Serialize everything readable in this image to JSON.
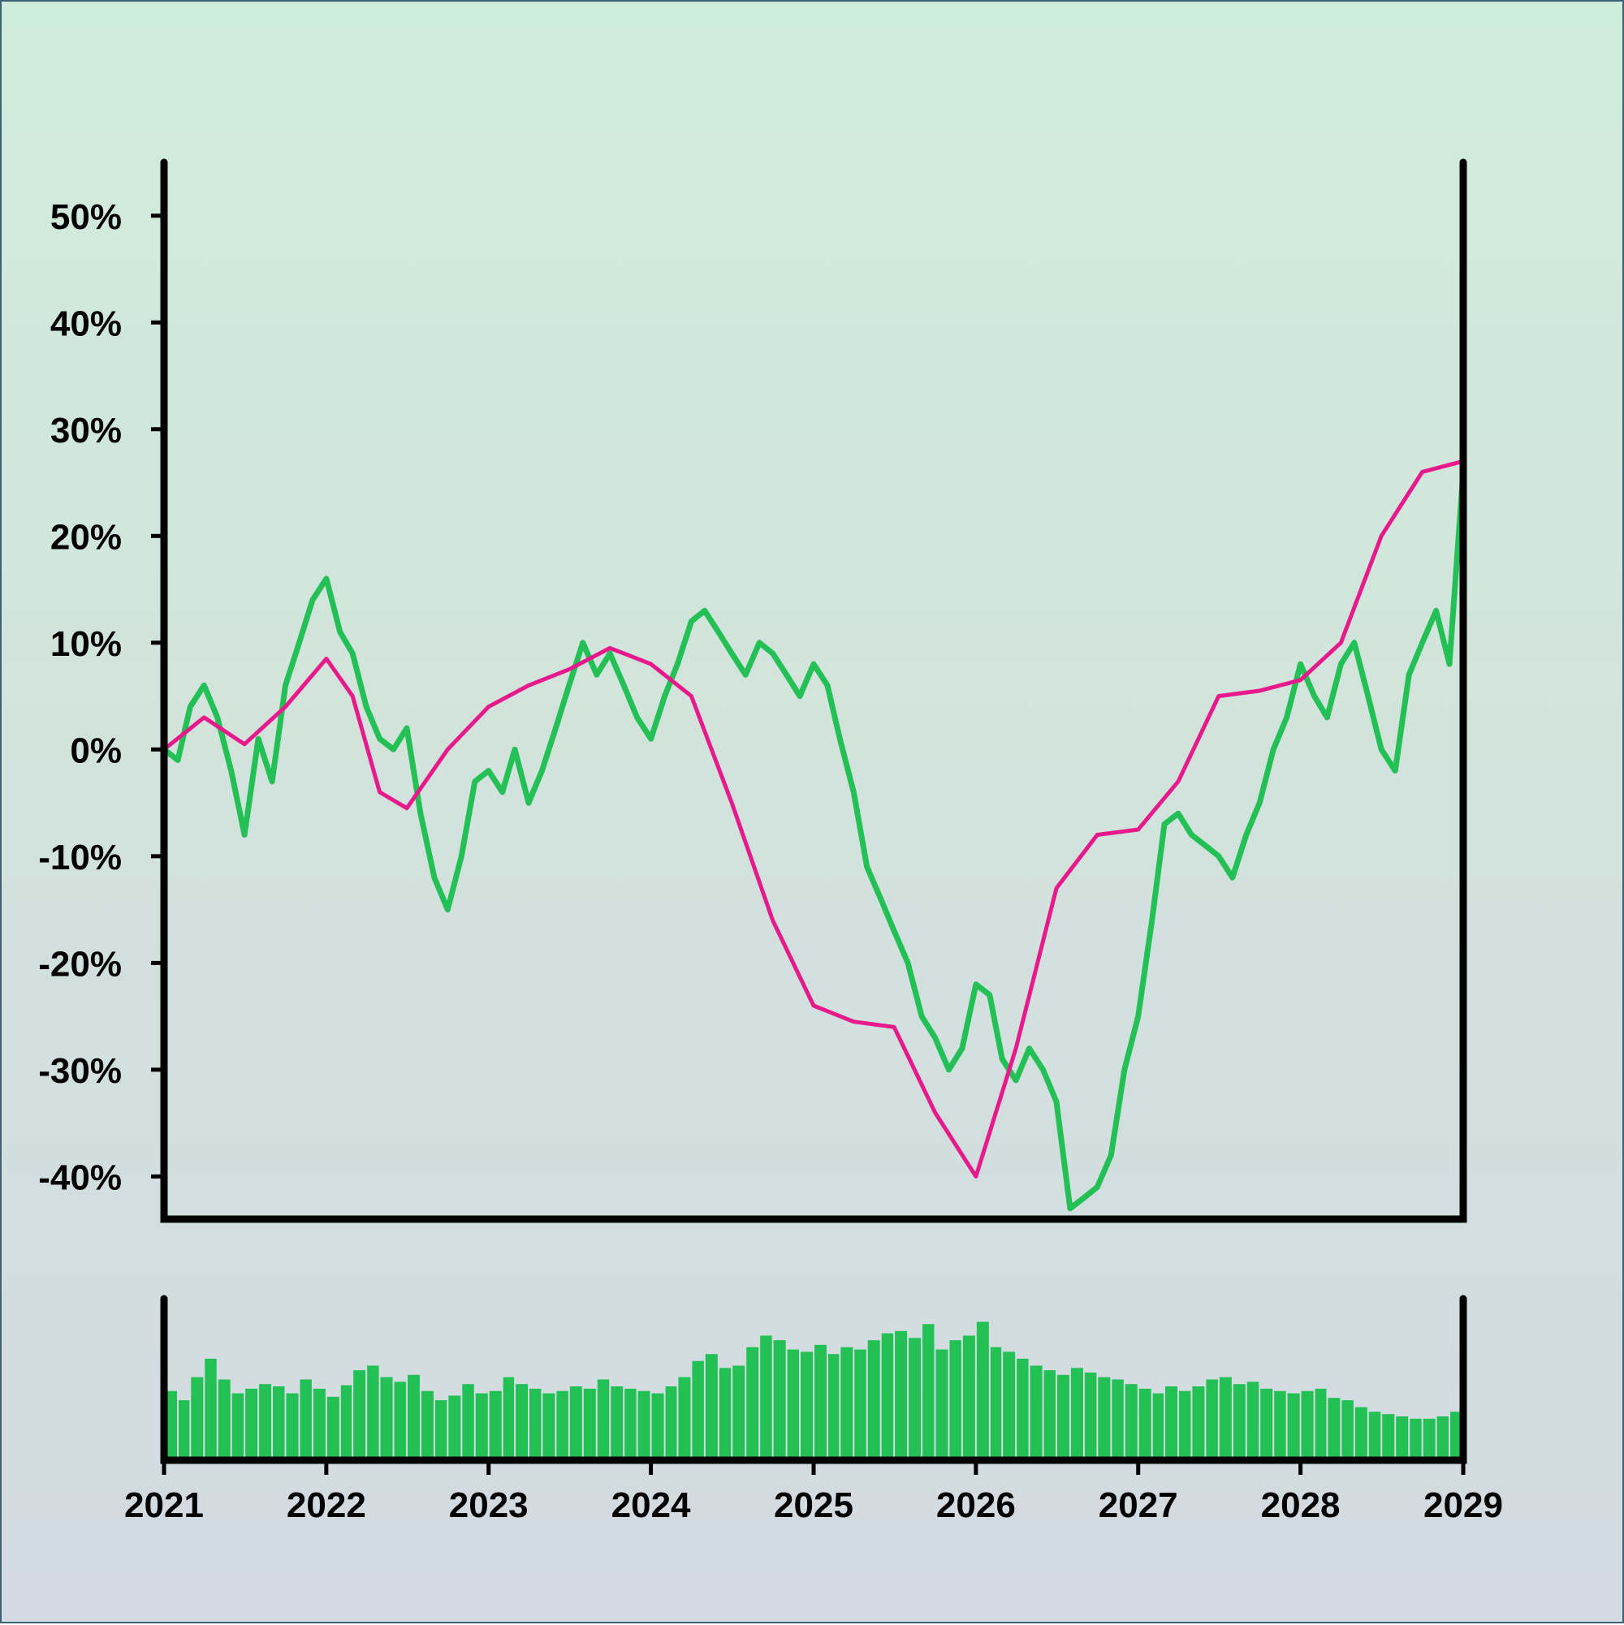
{
  "chart_data": [
    {
      "type": "line",
      "panel": "price",
      "title": "",
      "xlabel": "",
      "ylabel": "",
      "xlim": [
        "2021-01-01",
        "2029-01-01"
      ],
      "ylim": [
        -44,
        55
      ],
      "y_unit": "%",
      "grid": false,
      "y_ticks": [
        {
          "value": 50,
          "label": "50%"
        },
        {
          "value": 40,
          "label": "40%"
        },
        {
          "value": 30,
          "label": "30%"
        },
        {
          "value": 20,
          "label": "20%"
        },
        {
          "value": 10,
          "label": "10%"
        },
        {
          "value": 0,
          "label": "0%"
        },
        {
          "value": -10,
          "label": "-10%"
        },
        {
          "value": -20,
          "label": "-20%"
        },
        {
          "value": -30,
          "label": "-30%"
        },
        {
          "value": -40,
          "label": "-40%"
        }
      ],
      "series": [
        {
          "color": "#22c055",
          "x": [
            "2021-01-01",
            "2021-02-01",
            "2021-03-01",
            "2021-04-01",
            "2021-05-01",
            "2021-06-01",
            "2021-07-01",
            "2021-08-01",
            "2021-09-01",
            "2021-10-01",
            "2021-11-01",
            "2021-12-01",
            "2022-01-01",
            "2022-02-01",
            "2022-03-01",
            "2022-04-01",
            "2022-05-01",
            "2022-06-01",
            "2022-07-01",
            "2022-08-01",
            "2022-09-01",
            "2022-10-01",
            "2022-11-01",
            "2022-12-01",
            "2023-01-01",
            "2023-02-01",
            "2023-03-01",
            "2023-04-01",
            "2023-05-01",
            "2023-06-01",
            "2023-07-01",
            "2023-08-01",
            "2023-09-01",
            "2023-10-01",
            "2023-11-01",
            "2023-12-01",
            "2024-01-01",
            "2024-02-01",
            "2024-03-01",
            "2024-04-01",
            "2024-05-01",
            "2024-06-01",
            "2024-07-01",
            "2024-08-01",
            "2024-09-01",
            "2024-10-01",
            "2024-11-01",
            "2024-12-01",
            "2025-01-01",
            "2025-02-01",
            "2025-03-01",
            "2025-04-01",
            "2025-05-01",
            "2025-06-01",
            "2025-07-01",
            "2025-08-01",
            "2025-09-01",
            "2025-10-01",
            "2025-11-01",
            "2025-12-01",
            "2026-01-01",
            "2026-02-01",
            "2026-03-01",
            "2026-04-01",
            "2026-05-01",
            "2026-06-01",
            "2026-07-01",
            "2026-08-01",
            "2026-09-01",
            "2026-10-01",
            "2026-11-01",
            "2026-12-01",
            "2027-01-01",
            "2027-02-01",
            "2027-03-01",
            "2027-04-01",
            "2027-05-01",
            "2027-06-01",
            "2027-07-01",
            "2027-08-01",
            "2027-09-01",
            "2027-10-01",
            "2027-11-01",
            "2027-12-01",
            "2028-01-01",
            "2028-02-01",
            "2028-03-01",
            "2028-04-01",
            "2028-05-01",
            "2028-06-01",
            "2028-07-01",
            "2028-08-01",
            "2028-09-01",
            "2028-10-01",
            "2028-11-01",
            "2028-12-01",
            "2029-01-01"
          ],
          "values": [
            0,
            -1,
            4,
            6,
            3,
            -2,
            -8,
            1,
            -3,
            6,
            10,
            14,
            16,
            11,
            9,
            4,
            1,
            0,
            2,
            -6,
            -12,
            -15,
            -10,
            -3,
            -2,
            -4,
            0,
            -5,
            -2,
            2,
            6,
            10,
            7,
            9,
            6,
            3,
            1,
            5,
            8,
            12,
            13,
            11,
            9,
            7,
            10,
            9,
            7,
            5,
            8,
            6,
            1,
            -4,
            -11,
            -14,
            -17,
            -20,
            -25,
            -27,
            -30,
            -28,
            -22,
            -23,
            -29,
            -31,
            -28,
            -30,
            -33,
            -43,
            -42,
            -41,
            -38,
            -30,
            -25,
            -16,
            -7,
            -6,
            -8,
            -9,
            -10,
            -12,
            -8,
            -5,
            0,
            3,
            8,
            5,
            3,
            8,
            10,
            5,
            0,
            -2,
            7,
            10,
            13,
            8,
            26
          ]
        },
        {
          "color": "#e8198b",
          "x": [
            "2021-01-01",
            "2021-04-01",
            "2021-07-01",
            "2021-10-01",
            "2022-01-01",
            "2022-03-01",
            "2022-05-01",
            "2022-07-01",
            "2022-10-01",
            "2023-01-01",
            "2023-04-01",
            "2023-07-01",
            "2023-10-01",
            "2024-01-01",
            "2024-04-01",
            "2024-07-01",
            "2024-10-01",
            "2025-01-01",
            "2025-04-01",
            "2025-07-01",
            "2025-10-01",
            "2026-01-01",
            "2026-04-01",
            "2026-07-01",
            "2026-10-01",
            "2027-01-01",
            "2027-04-01",
            "2027-07-01",
            "2027-10-01",
            "2028-01-01",
            "2028-04-01",
            "2028-07-01",
            "2028-10-01",
            "2029-01-01"
          ],
          "values": [
            0,
            3,
            0.5,
            4,
            8.5,
            5,
            -4,
            -5.5,
            0,
            4,
            6,
            7.5,
            9.5,
            8,
            5,
            -5,
            -16,
            -24,
            -25.5,
            -26,
            -34,
            -40,
            -28,
            -13,
            -8,
            -7.5,
            -3,
            5,
            5.5,
            6.5,
            10,
            20,
            26,
            27
          ]
        }
      ]
    },
    {
      "type": "bar",
      "panel": "volume",
      "title": "",
      "xlabel": "",
      "ylabel": "",
      "xlim": [
        "2021-01-01",
        "2029-01-01"
      ],
      "ylim": [
        0,
        140
      ],
      "grid": false,
      "x_ticks": [
        "2021",
        "2022",
        "2023",
        "2024",
        "2025",
        "2026",
        "2027",
        "2028",
        "2029"
      ],
      "series": [
        {
          "color": "#22c055",
          "x": [
            "2021-01-01",
            "2021-02-01",
            "2021-03-01",
            "2021-04-01",
            "2021-05-01",
            "2021-06-01",
            "2021-07-01",
            "2021-08-01",
            "2021-09-01",
            "2021-10-01",
            "2021-11-01",
            "2021-12-01",
            "2022-01-01",
            "2022-02-01",
            "2022-03-01",
            "2022-04-01",
            "2022-05-01",
            "2022-06-01",
            "2022-07-01",
            "2022-08-01",
            "2022-09-01",
            "2022-10-01",
            "2022-11-01",
            "2022-12-01",
            "2023-01-01",
            "2023-02-01",
            "2023-03-01",
            "2023-04-01",
            "2023-05-01",
            "2023-06-01",
            "2023-07-01",
            "2023-08-01",
            "2023-09-01",
            "2023-10-01",
            "2023-11-01",
            "2023-12-01",
            "2024-01-01",
            "2024-02-01",
            "2024-03-01",
            "2024-04-01",
            "2024-05-01",
            "2024-06-01",
            "2024-07-01",
            "2024-08-01",
            "2024-09-01",
            "2024-10-01",
            "2024-11-01",
            "2024-12-01",
            "2025-01-01",
            "2025-02-01",
            "2025-03-01",
            "2025-04-01",
            "2025-05-01",
            "2025-06-01",
            "2025-07-01",
            "2025-08-01",
            "2025-09-01",
            "2025-10-01",
            "2025-11-01",
            "2025-12-01",
            "2026-01-01",
            "2026-02-01",
            "2026-03-01",
            "2026-04-01",
            "2026-05-01",
            "2026-06-01",
            "2026-07-01",
            "2026-08-01",
            "2026-09-01",
            "2026-10-01",
            "2026-11-01",
            "2026-12-01",
            "2027-01-01",
            "2027-02-01",
            "2027-03-01",
            "2027-04-01",
            "2027-05-01",
            "2027-06-01",
            "2027-07-01",
            "2027-08-01",
            "2027-09-01",
            "2027-10-01",
            "2027-11-01",
            "2027-12-01",
            "2028-01-01",
            "2028-02-01",
            "2028-03-01",
            "2028-04-01",
            "2028-05-01",
            "2028-06-01",
            "2028-07-01",
            "2028-08-01",
            "2028-09-01",
            "2028-10-01",
            "2028-11-01",
            "2028-12-01"
          ],
          "values": [
            60,
            52,
            72,
            88,
            70,
            58,
            62,
            66,
            64,
            58,
            70,
            62,
            55,
            65,
            78,
            82,
            72,
            68,
            74,
            60,
            52,
            56,
            66,
            58,
            60,
            72,
            66,
            62,
            58,
            60,
            64,
            62,
            70,
            64,
            62,
            60,
            58,
            64,
            72,
            86,
            92,
            80,
            82,
            98,
            108,
            104,
            96,
            94,
            100,
            92,
            98,
            96,
            104,
            110,
            112,
            106,
            118,
            96,
            104,
            108,
            120,
            98,
            94,
            88,
            82,
            78,
            74,
            80,
            76,
            72,
            70,
            66,
            62,
            58,
            64,
            60,
            64,
            70,
            72,
            66,
            68,
            62,
            60,
            58,
            60,
            62,
            54,
            52,
            46,
            42,
            40,
            38,
            36,
            36,
            38,
            42
          ]
        }
      ]
    }
  ]
}
